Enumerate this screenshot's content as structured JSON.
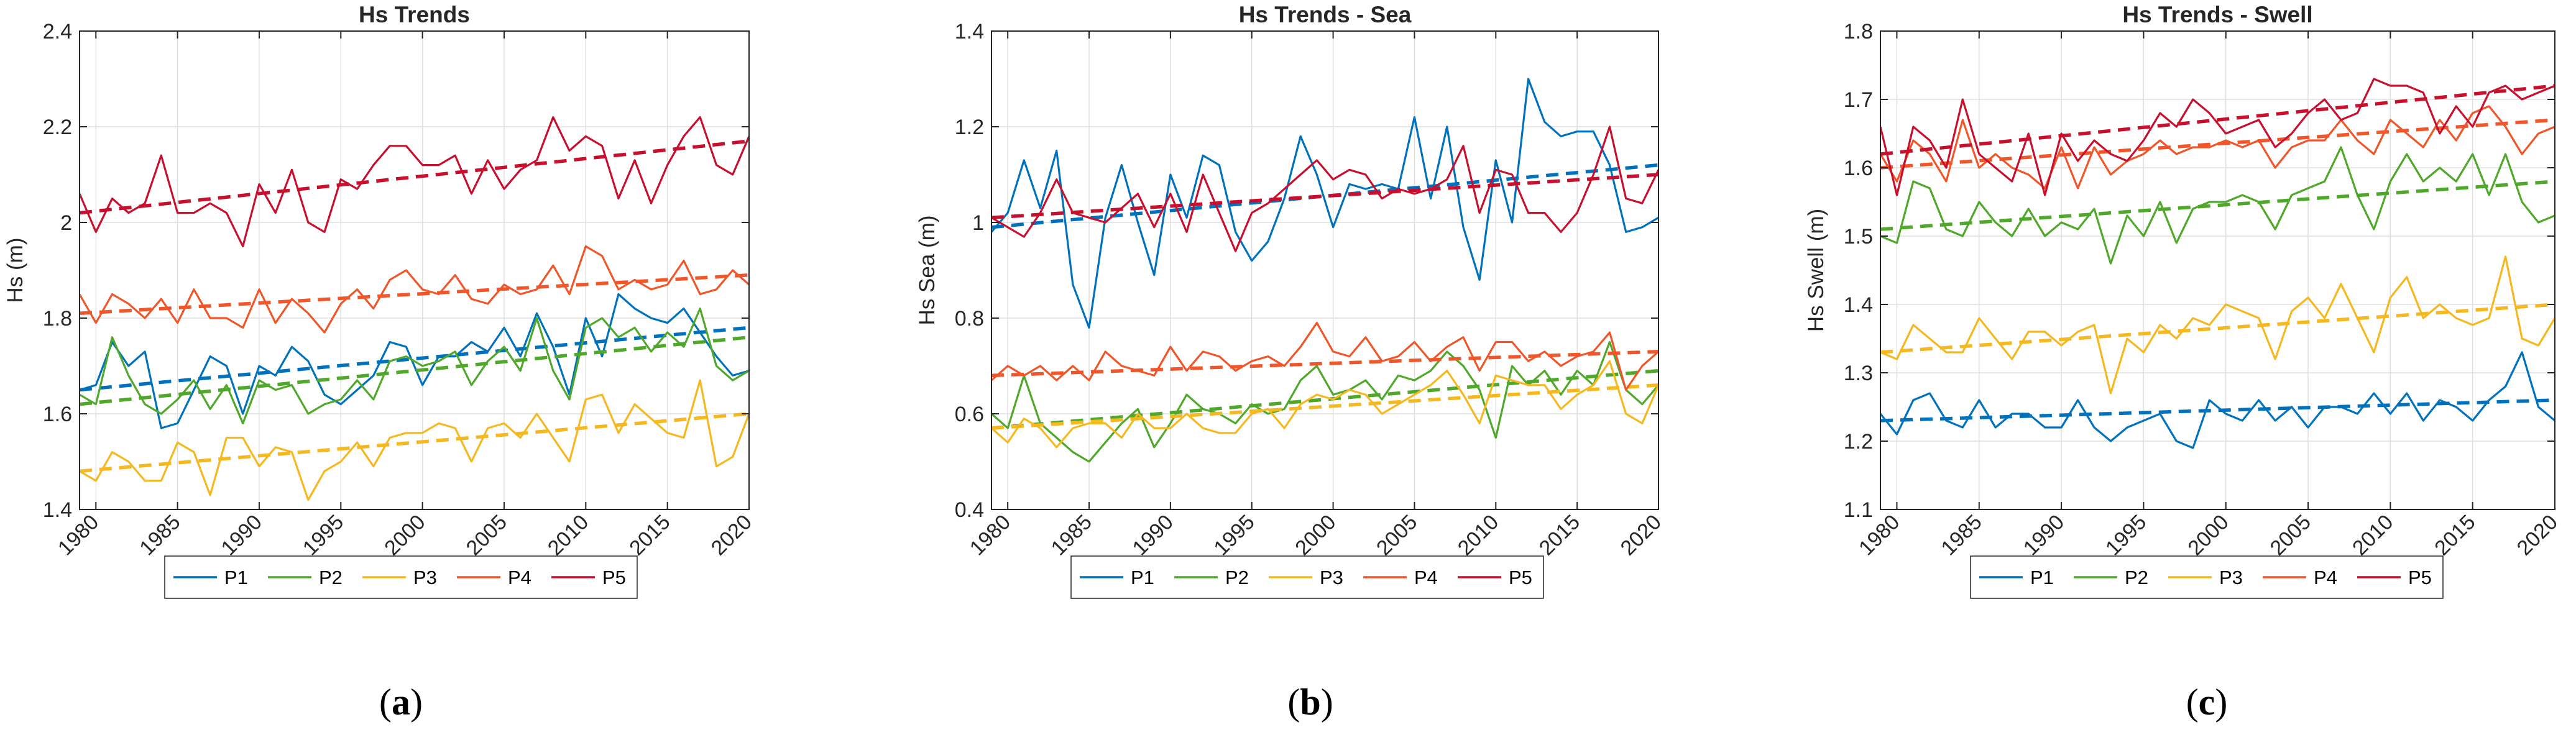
{
  "figure": {
    "captions": [
      "a",
      "b",
      "c"
    ]
  },
  "colors": {
    "P1": "#0072BD",
    "P2": "#4FA82A",
    "P3": "#F5B81E",
    "P4": "#F0562A",
    "P5": "#C8102E",
    "axis": "#262626",
    "grid": "#DFDFDF"
  },
  "chart_data": [
    {
      "type": "line",
      "title": "Hs Trends",
      "xlabel": "",
      "ylabel": "Hs (m)",
      "xlim": [
        1979,
        2020
      ],
      "ylim": [
        1.4,
        2.4
      ],
      "grid": true,
      "legend_position": "bottom",
      "xticks": [
        1980,
        1985,
        1990,
        1995,
        2000,
        2005,
        2010,
        2015,
        2020
      ],
      "xtick_labels": [
        "1980",
        "1985",
        "1990",
        "1995",
        "2000",
        "2005",
        "2010",
        "2015",
        "2020"
      ],
      "yticks": [
        1.4,
        1.6,
        1.8,
        2.0,
        2.2,
        2.4
      ],
      "ytick_labels": [
        "1.4",
        "1.6",
        "1.8",
        "2",
        "2.2",
        "2.4"
      ],
      "x": [
        1979,
        1980,
        1981,
        1982,
        1983,
        1984,
        1985,
        1986,
        1987,
        1988,
        1989,
        1990,
        1991,
        1992,
        1993,
        1994,
        1995,
        1996,
        1997,
        1998,
        1999,
        2000,
        2001,
        2002,
        2003,
        2004,
        2005,
        2006,
        2007,
        2008,
        2009,
        2010,
        2011,
        2012,
        2013,
        2014,
        2015,
        2016,
        2017,
        2018,
        2019,
        2020
      ],
      "series": [
        {
          "name": "P1",
          "values": [
            1.65,
            1.66,
            1.75,
            1.7,
            1.73,
            1.57,
            1.58,
            1.65,
            1.72,
            1.7,
            1.6,
            1.7,
            1.68,
            1.74,
            1.71,
            1.64,
            1.62,
            1.65,
            1.68,
            1.75,
            1.74,
            1.66,
            1.72,
            1.72,
            1.75,
            1.73,
            1.78,
            1.72,
            1.81,
            1.74,
            1.64,
            1.8,
            1.72,
            1.85,
            1.82,
            1.8,
            1.79,
            1.82,
            1.77,
            1.72,
            1.68,
            1.69
          ],
          "trend": [
            1.65,
            1.78
          ]
        },
        {
          "name": "P2",
          "values": [
            1.64,
            1.62,
            1.76,
            1.68,
            1.62,
            1.6,
            1.63,
            1.67,
            1.61,
            1.66,
            1.58,
            1.67,
            1.65,
            1.66,
            1.6,
            1.62,
            1.63,
            1.67,
            1.63,
            1.71,
            1.72,
            1.7,
            1.71,
            1.73,
            1.66,
            1.71,
            1.74,
            1.69,
            1.8,
            1.69,
            1.63,
            1.78,
            1.8,
            1.76,
            1.78,
            1.73,
            1.77,
            1.74,
            1.82,
            1.7,
            1.67,
            1.69
          ],
          "trend": [
            1.62,
            1.76
          ]
        },
        {
          "name": "P3",
          "values": [
            1.48,
            1.46,
            1.52,
            1.5,
            1.46,
            1.46,
            1.54,
            1.52,
            1.43,
            1.55,
            1.55,
            1.49,
            1.53,
            1.52,
            1.42,
            1.48,
            1.5,
            1.54,
            1.49,
            1.55,
            1.56,
            1.56,
            1.58,
            1.57,
            1.5,
            1.57,
            1.58,
            1.55,
            1.6,
            1.55,
            1.5,
            1.63,
            1.64,
            1.56,
            1.62,
            1.59,
            1.56,
            1.55,
            1.67,
            1.49,
            1.51,
            1.6
          ],
          "trend": [
            1.48,
            1.6
          ]
        },
        {
          "name": "P4",
          "values": [
            1.85,
            1.79,
            1.85,
            1.83,
            1.8,
            1.84,
            1.79,
            1.86,
            1.8,
            1.8,
            1.78,
            1.86,
            1.79,
            1.84,
            1.81,
            1.77,
            1.83,
            1.86,
            1.82,
            1.88,
            1.9,
            1.86,
            1.85,
            1.89,
            1.84,
            1.83,
            1.87,
            1.85,
            1.86,
            1.91,
            1.85,
            1.95,
            1.93,
            1.86,
            1.88,
            1.86,
            1.87,
            1.92,
            1.85,
            1.86,
            1.9,
            1.87
          ],
          "trend": [
            1.81,
            1.89
          ]
        },
        {
          "name": "P5",
          "values": [
            2.06,
            1.98,
            2.05,
            2.02,
            2.04,
            2.14,
            2.02,
            2.02,
            2.04,
            2.02,
            1.95,
            2.08,
            2.02,
            2.11,
            2.0,
            1.98,
            2.09,
            2.07,
            2.12,
            2.16,
            2.16,
            2.12,
            2.12,
            2.14,
            2.06,
            2.13,
            2.07,
            2.11,
            2.13,
            2.22,
            2.15,
            2.18,
            2.16,
            2.05,
            2.13,
            2.04,
            2.12,
            2.18,
            2.22,
            2.12,
            2.1,
            2.18
          ],
          "trend": [
            2.02,
            2.17
          ]
        }
      ]
    },
    {
      "type": "line",
      "title": "Hs Trends - Sea",
      "xlabel": "",
      "ylabel": "Hs Sea (m)",
      "xlim": [
        1979,
        2020
      ],
      "ylim": [
        0.4,
        1.4
      ],
      "grid": true,
      "legend_position": "bottom",
      "xticks": [
        1980,
        1985,
        1990,
        1995,
        2000,
        2005,
        2010,
        2015,
        2020
      ],
      "xtick_labels": [
        "1980",
        "1985",
        "1990",
        "1995",
        "2000",
        "2005",
        "2010",
        "2015",
        "2020"
      ],
      "yticks": [
        0.4,
        0.6,
        0.8,
        1.0,
        1.2,
        1.4
      ],
      "ytick_labels": [
        "0.4",
        "0.6",
        "0.8",
        "1",
        "1.2",
        "1.4"
      ],
      "x": [
        1979,
        1980,
        1981,
        1982,
        1983,
        1984,
        1985,
        1986,
        1987,
        1988,
        1989,
        1990,
        1991,
        1992,
        1993,
        1994,
        1995,
        1996,
        1997,
        1998,
        1999,
        2000,
        2001,
        2002,
        2003,
        2004,
        2005,
        2006,
        2007,
        2008,
        2009,
        2010,
        2011,
        2012,
        2013,
        2014,
        2015,
        2016,
        2017,
        2018,
        2019,
        2020
      ],
      "series": [
        {
          "name": "P1",
          "values": [
            0.98,
            1.02,
            1.13,
            1.03,
            1.15,
            0.87,
            0.78,
            1.01,
            1.12,
            1.0,
            0.89,
            1.1,
            1.01,
            1.14,
            1.12,
            0.98,
            0.92,
            0.96,
            1.05,
            1.18,
            1.1,
            0.99,
            1.08,
            1.07,
            1.08,
            1.07,
            1.22,
            1.05,
            1.2,
            0.99,
            0.88,
            1.13,
            1.0,
            1.3,
            1.21,
            1.18,
            1.19,
            1.19,
            1.12,
            0.98,
            0.99,
            1.01
          ],
          "trend": [
            0.99,
            1.12
          ]
        },
        {
          "name": "P2",
          "values": [
            0.6,
            0.57,
            0.68,
            0.58,
            0.55,
            0.52,
            0.5,
            0.54,
            0.58,
            0.61,
            0.53,
            0.58,
            0.64,
            0.61,
            0.6,
            0.58,
            0.62,
            0.6,
            0.61,
            0.67,
            0.7,
            0.64,
            0.65,
            0.67,
            0.63,
            0.68,
            0.67,
            0.69,
            0.73,
            0.7,
            0.65,
            0.55,
            0.7,
            0.66,
            0.69,
            0.64,
            0.69,
            0.66,
            0.75,
            0.65,
            0.62,
            0.66
          ],
          "trend": [
            0.57,
            0.69
          ]
        },
        {
          "name": "P3",
          "values": [
            0.57,
            0.54,
            0.59,
            0.57,
            0.53,
            0.57,
            0.58,
            0.58,
            0.55,
            0.6,
            0.57,
            0.57,
            0.6,
            0.57,
            0.56,
            0.56,
            0.6,
            0.61,
            0.57,
            0.62,
            0.64,
            0.63,
            0.65,
            0.64,
            0.6,
            0.62,
            0.64,
            0.66,
            0.69,
            0.64,
            0.58,
            0.68,
            0.67,
            0.66,
            0.66,
            0.61,
            0.64,
            0.66,
            0.71,
            0.6,
            0.58,
            0.66
          ],
          "trend": [
            0.57,
            0.66
          ]
        },
        {
          "name": "P4",
          "values": [
            0.67,
            0.7,
            0.68,
            0.7,
            0.67,
            0.7,
            0.67,
            0.73,
            0.7,
            0.69,
            0.68,
            0.74,
            0.69,
            0.73,
            0.72,
            0.69,
            0.71,
            0.72,
            0.7,
            0.74,
            0.79,
            0.73,
            0.72,
            0.76,
            0.71,
            0.72,
            0.75,
            0.71,
            0.74,
            0.76,
            0.69,
            0.75,
            0.75,
            0.71,
            0.73,
            0.7,
            0.72,
            0.73,
            0.77,
            0.65,
            0.7,
            0.73
          ],
          "trend": [
            0.68,
            0.73
          ]
        },
        {
          "name": "P5",
          "values": [
            1.01,
            0.99,
            0.97,
            1.02,
            1.09,
            1.02,
            1.01,
            1.0,
            1.03,
            1.06,
            0.99,
            1.06,
            0.98,
            1.1,
            1.02,
            0.94,
            1.02,
            1.04,
            1.07,
            1.1,
            1.13,
            1.09,
            1.11,
            1.1,
            1.05,
            1.07,
            1.06,
            1.07,
            1.09,
            1.16,
            1.02,
            1.11,
            1.1,
            1.02,
            1.02,
            0.98,
            1.02,
            1.1,
            1.2,
            1.05,
            1.04,
            1.11
          ],
          "trend": [
            1.01,
            1.1
          ]
        }
      ]
    },
    {
      "type": "line",
      "title": "Hs Trends - Swell",
      "xlabel": "",
      "ylabel": "Hs Swell (m)",
      "xlim": [
        1979,
        2020
      ],
      "ylim": [
        1.1,
        1.8
      ],
      "grid": true,
      "legend_position": "bottom",
      "xticks": [
        1980,
        1985,
        1990,
        1995,
        2000,
        2005,
        2010,
        2015,
        2020
      ],
      "xtick_labels": [
        "1980",
        "1985",
        "1990",
        "1995",
        "2000",
        "2005",
        "2010",
        "2015",
        "2020"
      ],
      "yticks": [
        1.1,
        1.2,
        1.3,
        1.4,
        1.5,
        1.6,
        1.7,
        1.8
      ],
      "ytick_labels": [
        "1.1",
        "1.2",
        "1.3",
        "1.4",
        "1.5",
        "1.6",
        "1.7",
        "1.8"
      ],
      "x": [
        1979,
        1980,
        1981,
        1982,
        1983,
        1984,
        1985,
        1986,
        1987,
        1988,
        1989,
        1990,
        1991,
        1992,
        1993,
        1994,
        1995,
        1996,
        1997,
        1998,
        1999,
        2000,
        2001,
        2002,
        2003,
        2004,
        2005,
        2006,
        2007,
        2008,
        2009,
        2010,
        2011,
        2012,
        2013,
        2014,
        2015,
        2016,
        2017,
        2018,
        2019,
        2020
      ],
      "series": [
        {
          "name": "P1",
          "values": [
            1.24,
            1.21,
            1.26,
            1.27,
            1.23,
            1.22,
            1.26,
            1.22,
            1.24,
            1.24,
            1.22,
            1.22,
            1.26,
            1.22,
            1.2,
            1.22,
            1.23,
            1.24,
            1.2,
            1.19,
            1.26,
            1.24,
            1.23,
            1.26,
            1.23,
            1.25,
            1.22,
            1.25,
            1.25,
            1.24,
            1.27,
            1.24,
            1.27,
            1.23,
            1.26,
            1.25,
            1.23,
            1.26,
            1.28,
            1.33,
            1.25,
            1.23
          ],
          "trend": [
            1.23,
            1.26
          ]
        },
        {
          "name": "P2",
          "values": [
            1.5,
            1.49,
            1.58,
            1.57,
            1.51,
            1.5,
            1.55,
            1.52,
            1.5,
            1.54,
            1.5,
            1.52,
            1.51,
            1.54,
            1.46,
            1.53,
            1.5,
            1.55,
            1.49,
            1.54,
            1.55,
            1.55,
            1.56,
            1.55,
            1.51,
            1.56,
            1.57,
            1.58,
            1.63,
            1.56,
            1.51,
            1.58,
            1.62,
            1.58,
            1.6,
            1.58,
            1.62,
            1.56,
            1.62,
            1.55,
            1.52,
            1.53
          ],
          "trend": [
            1.51,
            1.58
          ]
        },
        {
          "name": "P3",
          "values": [
            1.33,
            1.32,
            1.37,
            1.35,
            1.33,
            1.33,
            1.38,
            1.35,
            1.32,
            1.36,
            1.36,
            1.34,
            1.36,
            1.37,
            1.27,
            1.35,
            1.33,
            1.37,
            1.35,
            1.38,
            1.37,
            1.4,
            1.39,
            1.38,
            1.32,
            1.39,
            1.41,
            1.38,
            1.43,
            1.38,
            1.33,
            1.41,
            1.44,
            1.38,
            1.4,
            1.38,
            1.37,
            1.38,
            1.47,
            1.35,
            1.34,
            1.38
          ],
          "trend": [
            1.33,
            1.4
          ]
        },
        {
          "name": "P4",
          "values": [
            1.62,
            1.58,
            1.64,
            1.62,
            1.58,
            1.67,
            1.6,
            1.62,
            1.6,
            1.59,
            1.57,
            1.63,
            1.57,
            1.63,
            1.59,
            1.61,
            1.62,
            1.64,
            1.62,
            1.63,
            1.63,
            1.64,
            1.63,
            1.64,
            1.6,
            1.63,
            1.64,
            1.64,
            1.67,
            1.64,
            1.62,
            1.67,
            1.65,
            1.63,
            1.67,
            1.64,
            1.68,
            1.69,
            1.66,
            1.62,
            1.65,
            1.66
          ],
          "trend": [
            1.6,
            1.67
          ]
        },
        {
          "name": "P5",
          "values": [
            1.66,
            1.56,
            1.66,
            1.64,
            1.6,
            1.7,
            1.62,
            1.6,
            1.58,
            1.65,
            1.56,
            1.65,
            1.61,
            1.64,
            1.62,
            1.61,
            1.64,
            1.68,
            1.66,
            1.7,
            1.68,
            1.65,
            1.66,
            1.67,
            1.63,
            1.65,
            1.68,
            1.7,
            1.67,
            1.68,
            1.73,
            1.72,
            1.72,
            1.71,
            1.65,
            1.69,
            1.66,
            1.71,
            1.72,
            1.7,
            1.71,
            1.72
          ],
          "trend": [
            1.62,
            1.72
          ]
        }
      ]
    }
  ]
}
